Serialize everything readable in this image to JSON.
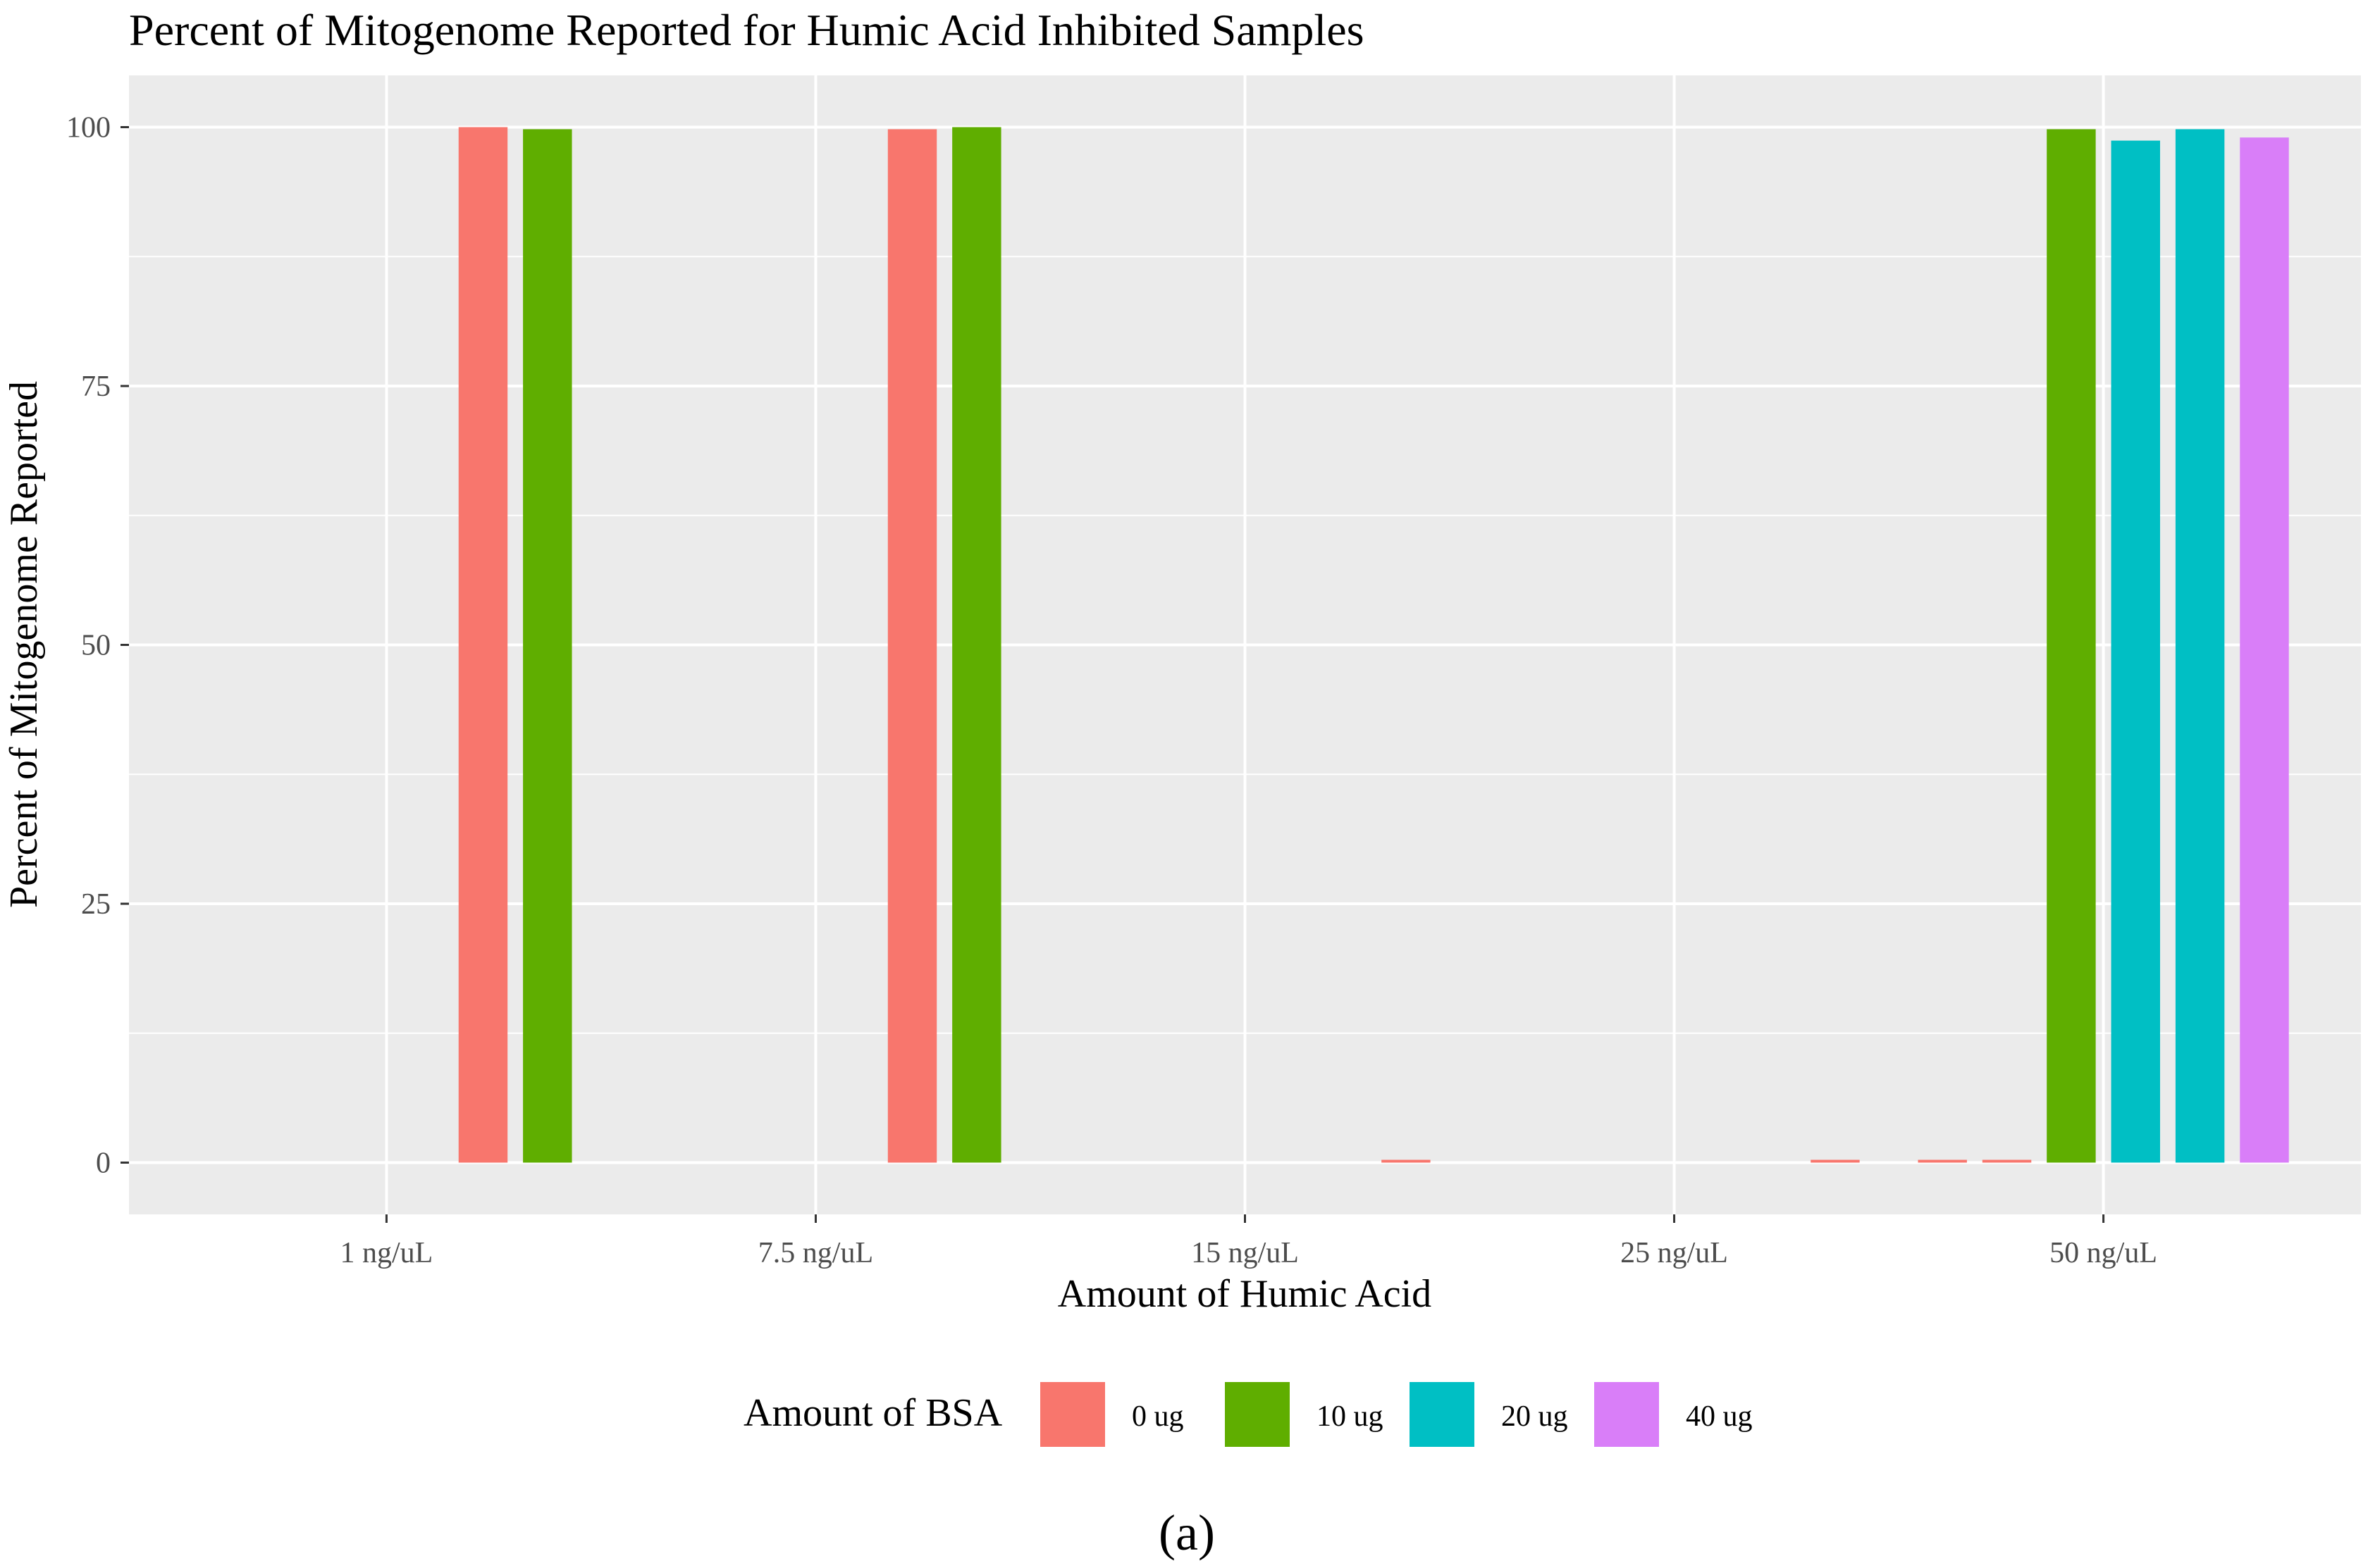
{
  "chart_data": {
    "type": "bar",
    "title": "Percent of Mitogenome Reported for Humic Acid Inhibited Samples",
    "xlabel": "Amount of Humic Acid",
    "ylabel": "Percent of Mitogenome Reported",
    "ylim": [
      -5,
      105
    ],
    "yticks": [
      0,
      25,
      50,
      75,
      100
    ],
    "categories": [
      "1 ng/uL",
      "7.5 ng/uL",
      "15 ng/uL",
      "25 ng/uL",
      "50 ng/uL"
    ],
    "grid": true,
    "legend": {
      "title": "Amount of BSA",
      "placement": "bottom",
      "entries": [
        {
          "label": "0 ug",
          "color": "#F8766D"
        },
        {
          "label": "10 ug",
          "color": "#5FAE00"
        },
        {
          "label": "20 ug",
          "color": "#00BFC4"
        },
        {
          "label": "40 ug",
          "color": "#D97EF8"
        }
      ]
    },
    "groups": [
      {
        "category": "1 ng/uL",
        "bars": [
          {
            "series": "0 ug",
            "value": 100.0
          },
          {
            "series": "10 ug",
            "value": 99.8
          }
        ]
      },
      {
        "category": "7.5 ng/uL",
        "bars": [
          {
            "series": "0 ug",
            "value": 99.8
          },
          {
            "series": "10 ug",
            "value": 100.0
          }
        ]
      },
      {
        "category": "15 ng/uL",
        "bars": [
          {
            "series": "0 ug",
            "value": 0.1
          }
        ]
      },
      {
        "category": "25 ng/uL",
        "bars": [
          {
            "series": "0 ug",
            "value": 0.1
          }
        ]
      },
      {
        "category": "50 ng/uL",
        "bars": [
          {
            "series": "0 ug",
            "value": 0.1
          },
          {
            "series": "0 ug",
            "value": 0.1
          },
          {
            "series": "10 ug",
            "value": 99.8
          },
          {
            "series": "20 ug",
            "value": 98.7
          },
          {
            "series": "20 ug",
            "value": 99.8
          },
          {
            "series": "40 ug",
            "value": 99.0
          }
        ]
      }
    ]
  },
  "caption": "(a)"
}
